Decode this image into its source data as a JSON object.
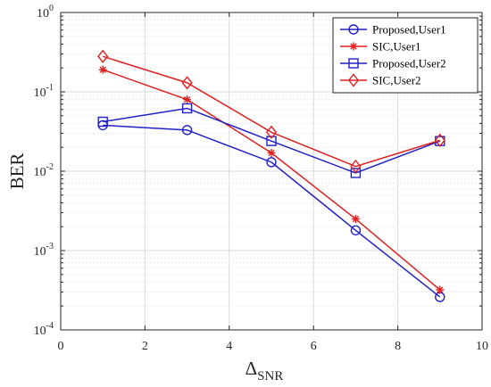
{
  "chart_data": {
    "type": "line",
    "y_scale": "log",
    "grid": true,
    "xlim": [
      0,
      10
    ],
    "ylim": [
      0.0001,
      1
    ],
    "x_ticks": [
      0,
      2,
      4,
      6,
      8,
      10
    ],
    "y_ticks": [
      {
        "value": 0.0001,
        "base": "10",
        "exp": "-4"
      },
      {
        "value": 0.001,
        "base": "10",
        "exp": "-3"
      },
      {
        "value": 0.01,
        "base": "10",
        "exp": "-2"
      },
      {
        "value": 0.1,
        "base": "10",
        "exp": "-1"
      },
      {
        "value": 1,
        "base": "10",
        "exp": "0"
      }
    ],
    "xlabel": {
      "main": "Δ",
      "sub": "SNR"
    },
    "ylabel": "BER",
    "legend_position": "top-right",
    "series": [
      {
        "name": "Proposed,User1",
        "color": "#2020c8",
        "marker": "circle",
        "x": [
          1,
          3,
          5,
          7,
          9
        ],
        "y": [
          0.038,
          0.033,
          0.013,
          0.0018,
          0.00026
        ]
      },
      {
        "name": "SIC,User1",
        "color": "#e02020",
        "marker": "star",
        "x": [
          1,
          3,
          5,
          7,
          9
        ],
        "y": [
          0.19,
          0.08,
          0.017,
          0.0025,
          0.00032
        ]
      },
      {
        "name": "Proposed,User2",
        "color": "#2020c8",
        "marker": "square",
        "x": [
          1,
          3,
          5,
          7,
          9
        ],
        "y": [
          0.042,
          0.062,
          0.024,
          0.0095,
          0.024
        ]
      },
      {
        "name": "SIC,User2",
        "color": "#e02020",
        "marker": "diamond",
        "x": [
          1,
          3,
          5,
          7,
          9
        ],
        "y": [
          0.28,
          0.13,
          0.031,
          0.0115,
          0.0245
        ]
      }
    ]
  }
}
